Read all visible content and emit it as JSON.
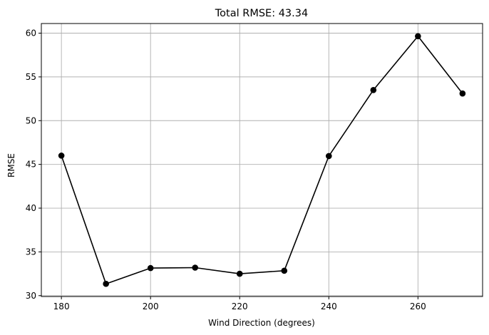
{
  "chart_data": {
    "type": "line",
    "title": "Total RMSE: 43.34",
    "xlabel": "Wind Direction (degrees)",
    "ylabel": "RMSE",
    "x": [
      180,
      190,
      200,
      210,
      220,
      230,
      240,
      250,
      260,
      270
    ],
    "series": [
      {
        "values": [
          46.0,
          31.35,
          33.15,
          33.2,
          32.5,
          32.85,
          45.95,
          53.5,
          59.65,
          53.1
        ]
      }
    ],
    "xticks": [
      180,
      200,
      220,
      240,
      260
    ],
    "yticks": [
      30,
      35,
      40,
      45,
      50,
      55,
      60
    ],
    "xlim": [
      175.5,
      274.5
    ],
    "ylim": [
      29.9,
      61.1
    ],
    "grid": true,
    "colors": {
      "line": "#000000",
      "grid": "#b0b0b0",
      "axes": "#000000"
    }
  }
}
